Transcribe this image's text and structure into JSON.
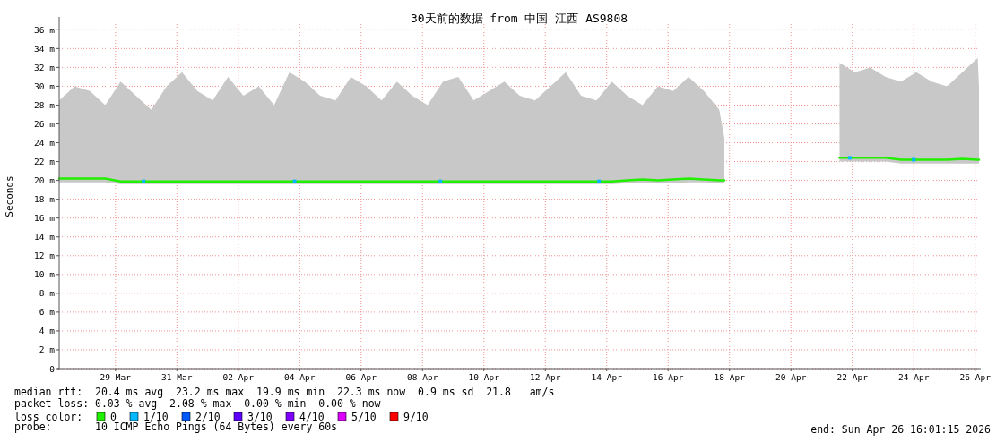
{
  "chart_data": {
    "type": "line",
    "title": "30天前的数据 from 中国 江西 AS9808",
    "ylabel": "Seconds",
    "xlim": [
      "2026-03-27T16:00",
      "2026-04-26T15:00"
    ],
    "xticks": [
      {
        "value": "2026-03-29T12:00",
        "label": "29 Mar"
      },
      {
        "value": "2026-03-31T12:00",
        "label": "31 Mar"
      },
      {
        "value": "2026-04-02T12:00",
        "label": "02 Apr"
      },
      {
        "value": "2026-04-04T12:00",
        "label": "04 Apr"
      },
      {
        "value": "2026-04-06T12:00",
        "label": "06 Apr"
      },
      {
        "value": "2026-04-08T12:00",
        "label": "08 Apr"
      },
      {
        "value": "2026-04-10T12:00",
        "label": "10 Apr"
      },
      {
        "value": "2026-04-12T12:00",
        "label": "12 Apr"
      },
      {
        "value": "2026-04-14T12:00",
        "label": "14 Apr"
      },
      {
        "value": "2026-04-16T12:00",
        "label": "16 Apr"
      },
      {
        "value": "2026-04-18T12:00",
        "label": "18 Apr"
      },
      {
        "value": "2026-04-20T12:00",
        "label": "20 Apr"
      },
      {
        "value": "2026-04-22T12:00",
        "label": "22 Apr"
      },
      {
        "value": "2026-04-24T12:00",
        "label": "24 Apr"
      },
      {
        "value": "2026-04-26T12:00",
        "label": "26 Apr"
      }
    ],
    "ylim": [
      0,
      36.6
    ],
    "yticks": [
      0,
      {
        "value": 2,
        "label": "2 m"
      },
      {
        "value": 4,
        "label": "4 m"
      },
      {
        "value": 6,
        "label": "6 m"
      },
      {
        "value": 8,
        "label": "8 m"
      },
      {
        "value": 10,
        "label": "10 m"
      },
      {
        "value": 12,
        "label": "12 m"
      },
      {
        "value": 14,
        "label": "14 m"
      },
      {
        "value": 16,
        "label": "16 m"
      },
      {
        "value": 18,
        "label": "18 m"
      },
      {
        "value": 20,
        "label": "20 m"
      },
      {
        "value": 22,
        "label": "22 m"
      },
      {
        "value": 24,
        "label": "24 m"
      },
      {
        "value": 26,
        "label": "26 m"
      },
      {
        "value": 28,
        "label": "28 m"
      },
      {
        "value": 30,
        "label": "30 m"
      },
      {
        "value": 32,
        "label": "32 m"
      },
      {
        "value": 34,
        "label": "34 m"
      },
      {
        "value": 36,
        "label": "36 m"
      }
    ],
    "grid": true,
    "legend": "bottom left",
    "legend_title": "loss color:",
    "series": [
      {
        "name": "0",
        "color": "#22ee00",
        "x": [
          "2026-03-27T16:00",
          "2026-03-28T04:00",
          "2026-03-28T16:00",
          "2026-03-29T04:00",
          "2026-03-29T16:00",
          "2026-03-30T04:00",
          "2026-03-30T16:00",
          "2026-03-31T04:00",
          "2026-03-31T16:00",
          "2026-04-01T04:00",
          "2026-04-01T16:00",
          "2026-04-02T04:00",
          "2026-04-02T16:00",
          "2026-04-03T04:00",
          "2026-04-03T16:00",
          "2026-04-04T04:00",
          "2026-04-04T16:00",
          "2026-04-05T04:00",
          "2026-04-05T16:00",
          "2026-04-06T04:00",
          "2026-04-06T16:00",
          "2026-04-07T04:00",
          "2026-04-07T16:00",
          "2026-04-08T04:00",
          "2026-04-08T16:00",
          "2026-04-09T04:00",
          "2026-04-09T16:00",
          "2026-04-10T04:00",
          "2026-04-10T16:00",
          "2026-04-11T04:00",
          "2026-04-11T16:00",
          "2026-04-12T04:00",
          "2026-04-12T16:00",
          "2026-04-13T04:00",
          "2026-04-13T16:00",
          "2026-04-14T04:00",
          "2026-04-14T16:00",
          "2026-04-15T04:00",
          "2026-04-15T16:00",
          "2026-04-16T04:00",
          "2026-04-16T16:00",
          "2026-04-17T04:00",
          "2026-04-17T16:00",
          "2026-04-18T04:00",
          "2026-04-18T08:00"
        ],
        "values": [
          20.2,
          20.2,
          20.2,
          20.2,
          19.9,
          19.9,
          19.9,
          19.9,
          19.9,
          19.9,
          19.9,
          19.9,
          19.9,
          19.9,
          19.9,
          19.9,
          19.9,
          19.9,
          19.9,
          19.9,
          19.9,
          19.9,
          19.9,
          19.9,
          19.9,
          19.9,
          19.9,
          19.9,
          19.9,
          19.9,
          19.9,
          19.9,
          19.9,
          19.9,
          19.9,
          19.9,
          19.9,
          20.0,
          20.1,
          20.0,
          20.1,
          20.2,
          20.1,
          20.0,
          20.0
        ],
        "upper": [
          28.5,
          30,
          29.5,
          28,
          30.5,
          29,
          27.5,
          30,
          31.5,
          29.5,
          28.5,
          31,
          29,
          30,
          28,
          31.5,
          30.5,
          29,
          28.5,
          31,
          30,
          28.5,
          30.5,
          29,
          28,
          30.5,
          31,
          28.5,
          29.5,
          30.5,
          29,
          28.5,
          30,
          31.5,
          29,
          28.5,
          30.5,
          29,
          28,
          30,
          29.5,
          31,
          29.5,
          27.5,
          24.5
        ],
        "lower": [
          19.8,
          19.8,
          19.8,
          19.8,
          19.6,
          19.6,
          19.6,
          19.6,
          19.6,
          19.6,
          19.6,
          19.6,
          19.6,
          19.6,
          19.6,
          19.6,
          19.6,
          19.6,
          19.6,
          19.6,
          19.6,
          19.6,
          19.6,
          19.6,
          19.6,
          19.6,
          19.6,
          19.6,
          19.6,
          19.6,
          19.6,
          19.6,
          19.6,
          19.6,
          19.6,
          19.6,
          19.6,
          19.7,
          19.7,
          19.7,
          19.7,
          19.8,
          19.8,
          19.7,
          19.7
        ]
      },
      {
        "color": "#22ee00",
        "x": [
          "2026-04-22T02:00",
          "2026-04-22T14:00",
          "2026-04-23T02:00",
          "2026-04-23T14:00",
          "2026-04-24T02:00",
          "2026-04-24T14:00",
          "2026-04-25T02:00",
          "2026-04-25T14:00",
          "2026-04-26T02:00",
          "2026-04-26T14:00",
          "2026-04-26T15:00"
        ],
        "values": [
          22.4,
          22.4,
          22.4,
          22.4,
          22.2,
          22.2,
          22.2,
          22.2,
          22.3,
          22.2,
          22.2
        ],
        "upper": [
          32.5,
          31.5,
          32,
          31,
          30.5,
          31.5,
          30.5,
          30,
          31.5,
          33,
          30
        ],
        "lower": [
          22.0,
          22.0,
          22.0,
          22.0,
          21.8,
          21.8,
          21.8,
          21.8,
          21.8,
          21.8,
          21.8
        ]
      },
      {
        "name": "1/10",
        "type": "scatter",
        "marker": "square",
        "color": "#00b8ff",
        "x": [
          "2026-03-30T10:00",
          "2026-04-04T08:00",
          "2026-04-09T02:00",
          "2026-04-14T06:00",
          "2026-04-22T10:00",
          "2026-04-24T12:00"
        ],
        "values": [
          19.9,
          19.9,
          19.9,
          19.9,
          22.4,
          22.2
        ]
      },
      {
        "name": "2/10",
        "type": "scatter",
        "marker": "square",
        "color": "#0059ff"
      },
      {
        "name": "3/10",
        "type": "scatter",
        "marker": "square",
        "color": "#5e00ff"
      },
      {
        "name": "4/10",
        "type": "scatter",
        "marker": "square",
        "color": "#7e00ff"
      },
      {
        "name": "5/10",
        "type": "scatter",
        "marker": "square",
        "color": "#dd00ff"
      },
      {
        "name": "9/10",
        "type": "scatter",
        "marker": "square",
        "color": "#ff0000"
      }
    ],
    "annotations": [
      "median rtt:  20.4 ms avg  23.2 ms max  19.9 ms min  22.3 ms now  0.9 ms sd  21.8   am/s",
      "packet loss: 0.03 % avg  2.08 % max  0.00 % min  0.00 % now",
      "probe:       10 ICMP Echo Pings (64 Bytes) every 60s",
      "end: Sun Apr 26 16:01:15 2026"
    ]
  }
}
